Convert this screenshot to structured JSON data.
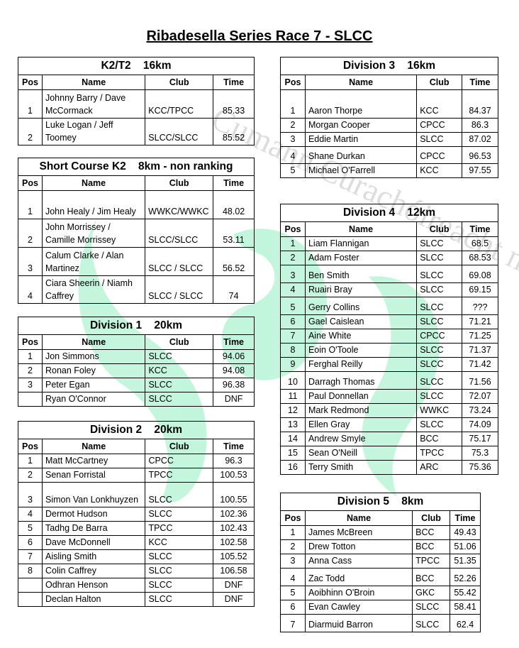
{
  "page_title": "Ribadesella Series Race 7 - SLCC",
  "headers": {
    "pos": "Pos",
    "name": "Name",
    "club": "Club",
    "time": "Time"
  },
  "watermark_text": "Cumann Curachóireacht na hÉireann",
  "colors": {
    "watermark_green": "#b8f5d6",
    "watermark_gray": "#c8c8c8"
  },
  "tables": [
    {
      "id": "k2t2",
      "title": "K2/T2    16km",
      "rows": [
        {
          "pos": "1",
          "name": "Johnny Barry / Dave McCormack",
          "club": "KCC/TPCC",
          "time": "85.33"
        },
        {
          "pos": "2",
          "name": "Luke Logan / Jeff Toomey",
          "club": "SLCC/SLCC",
          "time": "85.52"
        }
      ]
    },
    {
      "id": "short-course",
      "title": "Short Course K2    8km - non ranking",
      "rows": [
        {
          "pos": "1",
          "name": "John Healy / Jim Healy",
          "club": "WWKC/WWKC",
          "time": "48.02"
        },
        {
          "pos": "2",
          "name": "John Morrissey / Camille Morrissey",
          "club": "SLCC/SLCC",
          "time": "53.11"
        },
        {
          "pos": "3",
          "name": "Calum Clarke / Alan Martinez",
          "club": "SLCC / SLCC",
          "time": "56.52"
        },
        {
          "pos": "4",
          "name": "Ciara Sheerin / Niamh Caffrey",
          "club": "SLCC / SLCC",
          "time": "74"
        }
      ]
    },
    {
      "id": "div1",
      "title": "Division 1    20km",
      "rows": [
        {
          "pos": "1",
          "name": "Jon Simmons",
          "club": "SLCC",
          "time": "94.06"
        },
        {
          "pos": "2",
          "name": "Ronan Foley",
          "club": "KCC",
          "time": "94.08"
        },
        {
          "pos": "3",
          "name": "Peter Egan",
          "club": "SLCC",
          "time": "96.38"
        },
        {
          "pos": "",
          "name": "Ryan O'Connor",
          "club": "SLCC",
          "time": "DNF"
        }
      ]
    },
    {
      "id": "div2",
      "title": "Division 2    20km",
      "rows": [
        {
          "pos": "1",
          "name": "Matt McCartney",
          "club": "CPCC",
          "time": "96.3"
        },
        {
          "pos": "2",
          "name": "Senan Forristal",
          "club": "TPCC",
          "time": "100.53"
        },
        {
          "pos": "3",
          "name": "Simon Van Lonkhuyzen",
          "club": "SLCC",
          "time": "100.55"
        },
        {
          "pos": "4",
          "name": "Dermot Hudson",
          "club": "SLCC",
          "time": "102.36"
        },
        {
          "pos": "5",
          "name": "Tadhg De Barra",
          "club": "TPCC",
          "time": "102.43"
        },
        {
          "pos": "6",
          "name": "Dave McDonnell",
          "club": "KCC",
          "time": "102.58"
        },
        {
          "pos": "7",
          "name": "Aisling Smith",
          "club": "SLCC",
          "time": "105.52"
        },
        {
          "pos": "8",
          "name": "Colin Caffrey",
          "club": "SLCC",
          "time": "106.58"
        },
        {
          "pos": "",
          "name": "Odhran Henson",
          "club": "SLCC",
          "time": "DNF"
        },
        {
          "pos": "",
          "name": "Declan Halton",
          "club": "SLCC",
          "time": "DNF"
        }
      ]
    },
    {
      "id": "div3",
      "title": "Division 3    16km",
      "rows": [
        {
          "pos": "1",
          "name": "Aaron Thorpe",
          "club": "KCC",
          "time": "84.37"
        },
        {
          "pos": "2",
          "name": "Morgan Cooper",
          "club": "CPCC",
          "time": "86.3"
        },
        {
          "pos": "3",
          "name": "Eddie Martin",
          "club": "SLCC",
          "time": "87.02"
        },
        {
          "pos": "4",
          "name": "Shane Durkan",
          "club": "CPCC",
          "time": "96.53"
        },
        {
          "pos": "5",
          "name": "Michael O'Farrell",
          "club": "KCC",
          "time": "97.55"
        }
      ]
    },
    {
      "id": "div4",
      "title": "Division 4    12km",
      "rows": [
        {
          "pos": "1",
          "name": "Liam Flannigan",
          "club": "SLCC",
          "time": "68.5"
        },
        {
          "pos": "2",
          "name": "Adam Foster",
          "club": "SLCC",
          "time": "68.53"
        },
        {
          "pos": "3",
          "name": "Ben Smith",
          "club": "SLCC",
          "time": "69.08"
        },
        {
          "pos": "4",
          "name": "Ruairi Bray",
          "club": "SLCC",
          "time": "69.15"
        },
        {
          "pos": "5",
          "name": "Gerry Collins",
          "club": "SLCC",
          "time": "???"
        },
        {
          "pos": "6",
          "name": "Gael Caislean",
          "club": "SLCC",
          "time": "71.21"
        },
        {
          "pos": "7",
          "name": "Aine White",
          "club": "CPCC",
          "time": "71.25"
        },
        {
          "pos": "8",
          "name": "Eoin O'Toole",
          "club": "SLCC",
          "time": "71.37"
        },
        {
          "pos": "9",
          "name": "Ferghal Reilly",
          "club": "SLCC",
          "time": "71.42"
        },
        {
          "pos": "10",
          "name": "Darragh Thomas",
          "club": "SLCC",
          "time": "71.56"
        },
        {
          "pos": "11",
          "name": "Paul Donnellan",
          "club": "SLCC",
          "time": "72.07"
        },
        {
          "pos": "12",
          "name": "Mark Redmond",
          "club": "WWKC",
          "time": "73.24"
        },
        {
          "pos": "13",
          "name": "Ellen Gray",
          "club": "SLCC",
          "time": "74.09"
        },
        {
          "pos": "14",
          "name": "Andrew Smyle",
          "club": "BCC",
          "time": "75.17"
        },
        {
          "pos": "15",
          "name": "Sean O'Neill",
          "club": "TPCC",
          "time": "75.3"
        },
        {
          "pos": "16",
          "name": "Terry Smith",
          "club": "ARC",
          "time": "75.36"
        }
      ]
    },
    {
      "id": "div5",
      "title": "Division 5    8km",
      "rows": [
        {
          "pos": "1",
          "name": "James McBreen",
          "club": "BCC",
          "time": "49.43"
        },
        {
          "pos": "2",
          "name": "Drew Totton",
          "club": "BCC",
          "time": "51.06"
        },
        {
          "pos": "3",
          "name": "Anna Cass",
          "club": "TPCC",
          "time": "51.35"
        },
        {
          "pos": "4",
          "name": "Zac Todd",
          "club": "BCC",
          "time": "52.26"
        },
        {
          "pos": "5",
          "name": "Aoibhinn O'Broin",
          "club": "GKC",
          "time": "55.42"
        },
        {
          "pos": "6",
          "name": "Evan Cawley",
          "club": "SLCC",
          "time": "58.41"
        },
        {
          "pos": "7",
          "name": "Diarmuid Barron",
          "club": "SLCC",
          "time": "62.4"
        }
      ]
    }
  ]
}
